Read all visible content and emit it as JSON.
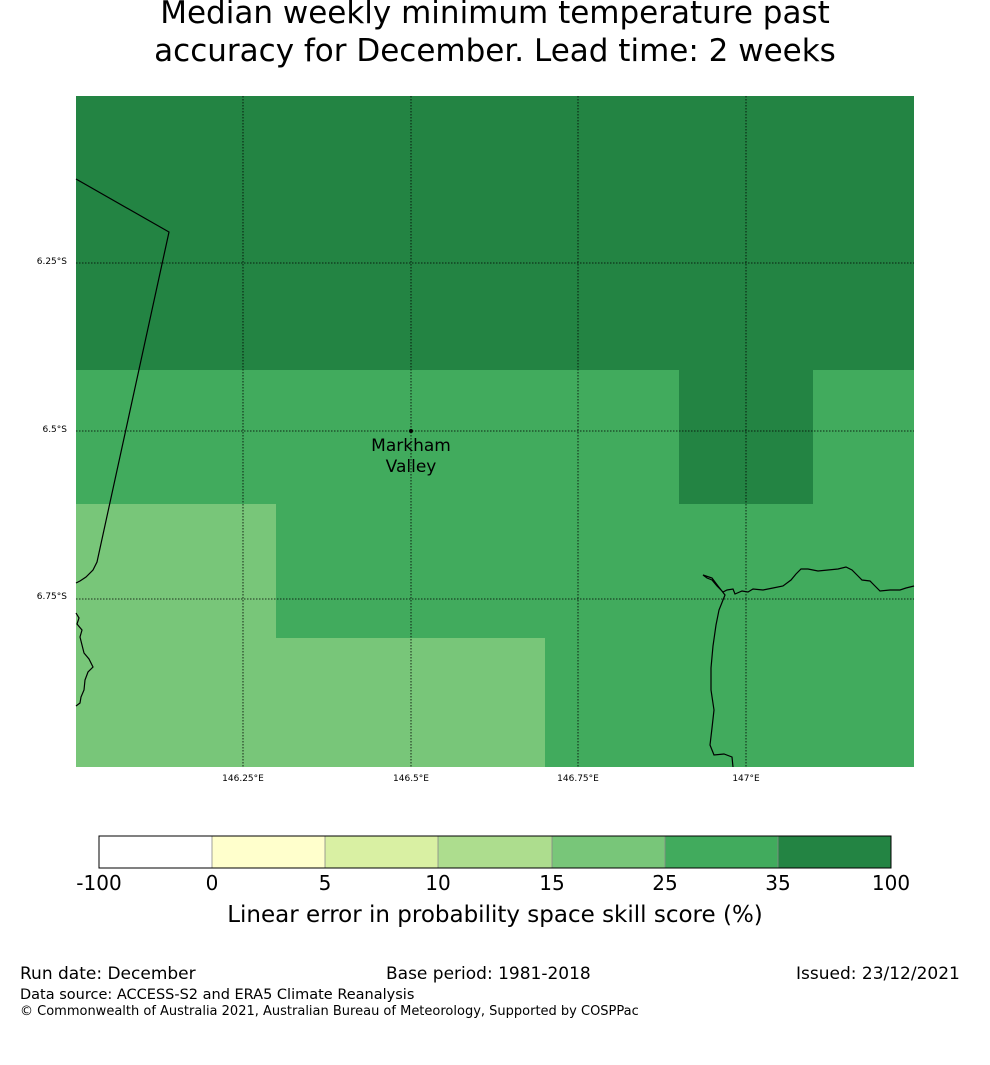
{
  "title": {
    "line1": "Median weekly minimum temperature past",
    "line2": "accuracy for December. Lead time: 2 weeks"
  },
  "map": {
    "lat_labels": [
      "6.25°S",
      "6.5°S",
      "6.75°S"
    ],
    "lon_labels": [
      "146.25°E",
      "146.5°E",
      "146.75°E",
      "147°E"
    ],
    "place": {
      "line1": "Markham",
      "line2": "Valley"
    },
    "colors": {
      "c35_100": "#238443",
      "c25_35": "#41ab5d",
      "c15_25": "#78c679"
    }
  },
  "colorbar": {
    "ticks": [
      "-100",
      "0",
      "5",
      "10",
      "15",
      "25",
      "35",
      "100"
    ],
    "colors": [
      "#ffffff",
      "#ffffcc",
      "#d9f0a3",
      "#addd8e",
      "#78c679",
      "#41ab5d",
      "#238443"
    ],
    "label": "Linear error in probability space skill score (%)"
  },
  "footer": {
    "run_date": "Run date: December",
    "base_period": "Base period: 1981-2018",
    "issued": "Issued: 23/12/2021",
    "data_source": "Data source: ACCESS-S2 and ERA5 Climate Reanalysis",
    "copyright": "© Commonwealth of Australia 2021, Australian Bureau of Meteorology, Supported by COSPPac"
  }
}
